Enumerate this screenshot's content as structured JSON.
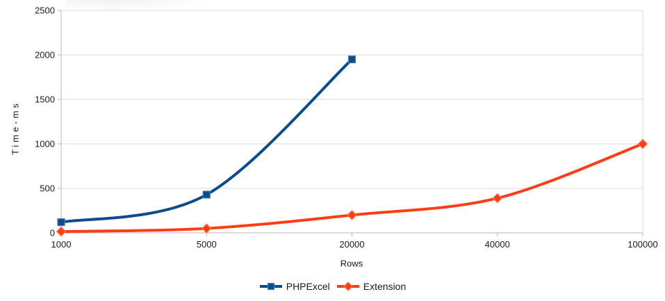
{
  "chart_data": {
    "type": "line",
    "title": "",
    "xlabel": "Rows",
    "ylabel": "Time-ms",
    "categories": [
      "1000",
      "5000",
      "20000",
      "40000",
      "100000"
    ],
    "series": [
      {
        "name": "PHPExcel",
        "values": [
          120,
          430,
          1950
        ],
        "color": "#0d4c8c",
        "marker": "square",
        "marker_border": "#4f7db0"
      },
      {
        "name": "Extension",
        "values": [
          15,
          50,
          200,
          390,
          1000
        ],
        "color": "#fb3e17",
        "marker": "diamond",
        "marker_border": "#ff7c52"
      }
    ],
    "ylim": [
      0,
      2500
    ],
    "yticks": [
      0,
      500,
      1000,
      1500,
      2000,
      2500
    ],
    "grid": "horizontal-gridlines-on",
    "legend_position": "bottom-center",
    "line_style": "smooth",
    "colors": {
      "gridline": "#d9d9d9",
      "axis_line": "#b6b6b6",
      "plot_border": "#d9d9d9",
      "text": "#1a1a1a",
      "background": "#ffffff"
    }
  }
}
